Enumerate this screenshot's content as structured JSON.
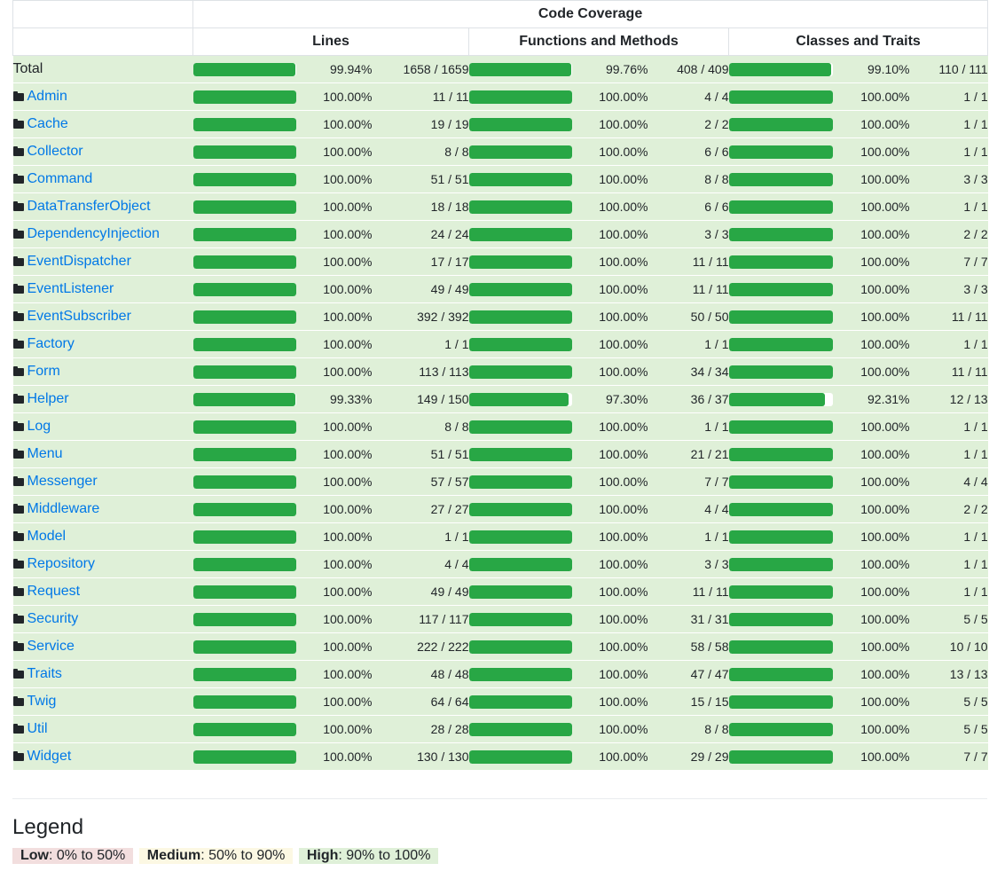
{
  "header": {
    "title": "Code Coverage",
    "columns": [
      "Lines",
      "Functions and Methods",
      "Classes and Traits"
    ]
  },
  "total": {
    "label": "Total",
    "lines": {
      "pct": "99.94%",
      "count": "1658 / 1659",
      "fill": 99.94
    },
    "functions": {
      "pct": "99.76%",
      "count": "408 / 409",
      "fill": 99.76
    },
    "classes": {
      "pct": "99.10%",
      "count": "110 / 111",
      "fill": 99.1
    }
  },
  "rows": [
    {
      "name": "Admin",
      "lines": {
        "pct": "100.00%",
        "count": "11 / 11",
        "fill": 100
      },
      "functions": {
        "pct": "100.00%",
        "count": "4 / 4",
        "fill": 100
      },
      "classes": {
        "pct": "100.00%",
        "count": "1 / 1",
        "fill": 100
      }
    },
    {
      "name": "Cache",
      "lines": {
        "pct": "100.00%",
        "count": "19 / 19",
        "fill": 100
      },
      "functions": {
        "pct": "100.00%",
        "count": "2 / 2",
        "fill": 100
      },
      "classes": {
        "pct": "100.00%",
        "count": "1 / 1",
        "fill": 100
      }
    },
    {
      "name": "Collector",
      "lines": {
        "pct": "100.00%",
        "count": "8 / 8",
        "fill": 100
      },
      "functions": {
        "pct": "100.00%",
        "count": "6 / 6",
        "fill": 100
      },
      "classes": {
        "pct": "100.00%",
        "count": "1 / 1",
        "fill": 100
      }
    },
    {
      "name": "Command",
      "lines": {
        "pct": "100.00%",
        "count": "51 / 51",
        "fill": 100
      },
      "functions": {
        "pct": "100.00%",
        "count": "8 / 8",
        "fill": 100
      },
      "classes": {
        "pct": "100.00%",
        "count": "3 / 3",
        "fill": 100
      }
    },
    {
      "name": "DataTransferObject",
      "lines": {
        "pct": "100.00%",
        "count": "18 / 18",
        "fill": 100
      },
      "functions": {
        "pct": "100.00%",
        "count": "6 / 6",
        "fill": 100
      },
      "classes": {
        "pct": "100.00%",
        "count": "1 / 1",
        "fill": 100
      }
    },
    {
      "name": "DependencyInjection",
      "lines": {
        "pct": "100.00%",
        "count": "24 / 24",
        "fill": 100
      },
      "functions": {
        "pct": "100.00%",
        "count": "3 / 3",
        "fill": 100
      },
      "classes": {
        "pct": "100.00%",
        "count": "2 / 2",
        "fill": 100
      }
    },
    {
      "name": "EventDispatcher",
      "lines": {
        "pct": "100.00%",
        "count": "17 / 17",
        "fill": 100
      },
      "functions": {
        "pct": "100.00%",
        "count": "11 / 11",
        "fill": 100
      },
      "classes": {
        "pct": "100.00%",
        "count": "7 / 7",
        "fill": 100
      }
    },
    {
      "name": "EventListener",
      "lines": {
        "pct": "100.00%",
        "count": "49 / 49",
        "fill": 100
      },
      "functions": {
        "pct": "100.00%",
        "count": "11 / 11",
        "fill": 100
      },
      "classes": {
        "pct": "100.00%",
        "count": "3 / 3",
        "fill": 100
      }
    },
    {
      "name": "EventSubscriber",
      "lines": {
        "pct": "100.00%",
        "count": "392 / 392",
        "fill": 100
      },
      "functions": {
        "pct": "100.00%",
        "count": "50 / 50",
        "fill": 100
      },
      "classes": {
        "pct": "100.00%",
        "count": "11 / 11",
        "fill": 100
      }
    },
    {
      "name": "Factory",
      "lines": {
        "pct": "100.00%",
        "count": "1 / 1",
        "fill": 100
      },
      "functions": {
        "pct": "100.00%",
        "count": "1 / 1",
        "fill": 100
      },
      "classes": {
        "pct": "100.00%",
        "count": "1 / 1",
        "fill": 100
      }
    },
    {
      "name": "Form",
      "lines": {
        "pct": "100.00%",
        "count": "113 / 113",
        "fill": 100
      },
      "functions": {
        "pct": "100.00%",
        "count": "34 / 34",
        "fill": 100
      },
      "classes": {
        "pct": "100.00%",
        "count": "11 / 11",
        "fill": 100
      }
    },
    {
      "name": "Helper",
      "lines": {
        "pct": "99.33%",
        "count": "149 / 150",
        "fill": 99.33
      },
      "functions": {
        "pct": "97.30%",
        "count": "36 / 37",
        "fill": 97.3
      },
      "classes": {
        "pct": "92.31%",
        "count": "12 / 13",
        "fill": 92.31
      }
    },
    {
      "name": "Log",
      "lines": {
        "pct": "100.00%",
        "count": "8 / 8",
        "fill": 100
      },
      "functions": {
        "pct": "100.00%",
        "count": "1 / 1",
        "fill": 100
      },
      "classes": {
        "pct": "100.00%",
        "count": "1 / 1",
        "fill": 100
      }
    },
    {
      "name": "Menu",
      "lines": {
        "pct": "100.00%",
        "count": "51 / 51",
        "fill": 100
      },
      "functions": {
        "pct": "100.00%",
        "count": "21 / 21",
        "fill": 100
      },
      "classes": {
        "pct": "100.00%",
        "count": "1 / 1",
        "fill": 100
      }
    },
    {
      "name": "Messenger",
      "lines": {
        "pct": "100.00%",
        "count": "57 / 57",
        "fill": 100
      },
      "functions": {
        "pct": "100.00%",
        "count": "7 / 7",
        "fill": 100
      },
      "classes": {
        "pct": "100.00%",
        "count": "4 / 4",
        "fill": 100
      }
    },
    {
      "name": "Middleware",
      "lines": {
        "pct": "100.00%",
        "count": "27 / 27",
        "fill": 100
      },
      "functions": {
        "pct": "100.00%",
        "count": "4 / 4",
        "fill": 100
      },
      "classes": {
        "pct": "100.00%",
        "count": "2 / 2",
        "fill": 100
      }
    },
    {
      "name": "Model",
      "lines": {
        "pct": "100.00%",
        "count": "1 / 1",
        "fill": 100
      },
      "functions": {
        "pct": "100.00%",
        "count": "1 / 1",
        "fill": 100
      },
      "classes": {
        "pct": "100.00%",
        "count": "1 / 1",
        "fill": 100
      }
    },
    {
      "name": "Repository",
      "lines": {
        "pct": "100.00%",
        "count": "4 / 4",
        "fill": 100
      },
      "functions": {
        "pct": "100.00%",
        "count": "3 / 3",
        "fill": 100
      },
      "classes": {
        "pct": "100.00%",
        "count": "1 / 1",
        "fill": 100
      }
    },
    {
      "name": "Request",
      "lines": {
        "pct": "100.00%",
        "count": "49 / 49",
        "fill": 100
      },
      "functions": {
        "pct": "100.00%",
        "count": "11 / 11",
        "fill": 100
      },
      "classes": {
        "pct": "100.00%",
        "count": "1 / 1",
        "fill": 100
      }
    },
    {
      "name": "Security",
      "lines": {
        "pct": "100.00%",
        "count": "117 / 117",
        "fill": 100
      },
      "functions": {
        "pct": "100.00%",
        "count": "31 / 31",
        "fill": 100
      },
      "classes": {
        "pct": "100.00%",
        "count": "5 / 5",
        "fill": 100
      }
    },
    {
      "name": "Service",
      "lines": {
        "pct": "100.00%",
        "count": "222 / 222",
        "fill": 100
      },
      "functions": {
        "pct": "100.00%",
        "count": "58 / 58",
        "fill": 100
      },
      "classes": {
        "pct": "100.00%",
        "count": "10 / 10",
        "fill": 100
      }
    },
    {
      "name": "Traits",
      "lines": {
        "pct": "100.00%",
        "count": "48 / 48",
        "fill": 100
      },
      "functions": {
        "pct": "100.00%",
        "count": "47 / 47",
        "fill": 100
      },
      "classes": {
        "pct": "100.00%",
        "count": "13 / 13",
        "fill": 100
      }
    },
    {
      "name": "Twig",
      "lines": {
        "pct": "100.00%",
        "count": "64 / 64",
        "fill": 100
      },
      "functions": {
        "pct": "100.00%",
        "count": "15 / 15",
        "fill": 100
      },
      "classes": {
        "pct": "100.00%",
        "count": "5 / 5",
        "fill": 100
      }
    },
    {
      "name": "Util",
      "lines": {
        "pct": "100.00%",
        "count": "28 / 28",
        "fill": 100
      },
      "functions": {
        "pct": "100.00%",
        "count": "8 / 8",
        "fill": 100
      },
      "classes": {
        "pct": "100.00%",
        "count": "5 / 5",
        "fill": 100
      }
    },
    {
      "name": "Widget",
      "lines": {
        "pct": "100.00%",
        "count": "130 / 130",
        "fill": 100
      },
      "functions": {
        "pct": "100.00%",
        "count": "29 / 29",
        "fill": 100
      },
      "classes": {
        "pct": "100.00%",
        "count": "7 / 7",
        "fill": 100
      }
    }
  ],
  "legend": {
    "title": "Legend",
    "items": [
      {
        "level": "Low",
        "range": ": 0% to 50%"
      },
      {
        "level": "Medium",
        "range": ": 50% to 90%"
      },
      {
        "level": "High",
        "range": ": 90% to 100%"
      }
    ]
  },
  "colors": {
    "high_bg": "#dff0d8",
    "medium_bg": "#fcf8e3",
    "low_bg": "#f2dede",
    "bar_fill": "#28a745",
    "link": "#0078e7"
  },
  "icons": {
    "row_icon": "folder-icon"
  }
}
